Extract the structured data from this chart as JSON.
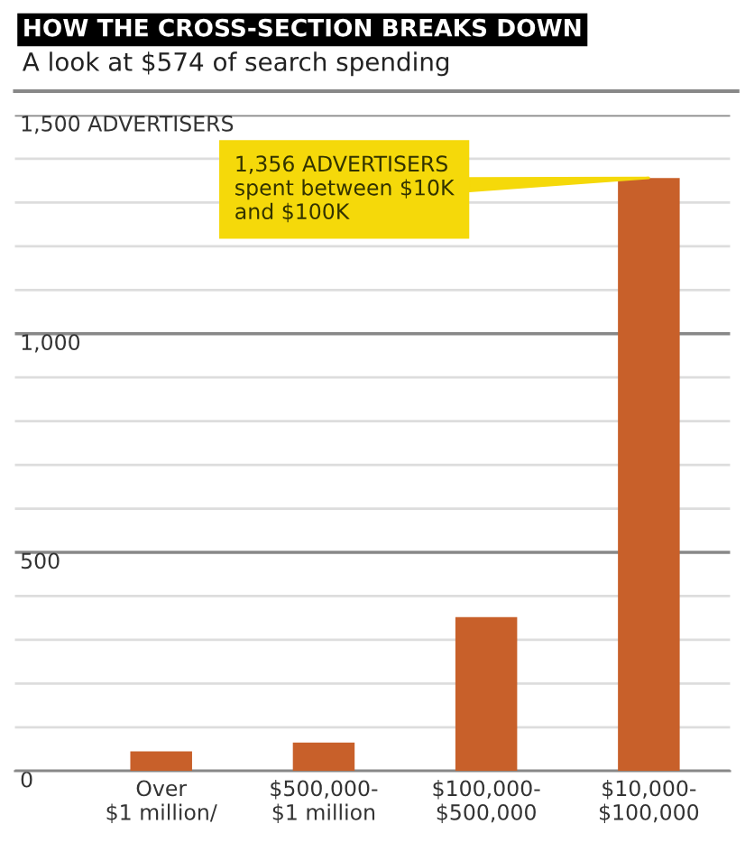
{
  "chart_data": {
    "type": "bar",
    "title": "HOW THE CROSS-SECTION BREAKS DOWN",
    "subtitle": "A look at $574 of search spending",
    "categories": [
      "Over\n$1 million/",
      "$500,000-\n$1 million",
      "$100,000-\n$500,000",
      "$10,000-\n$100,000"
    ],
    "values": [
      45,
      65,
      352,
      1356
    ],
    "color": "#c8602a",
    "ylim": [
      0,
      1500
    ],
    "yticks": [
      0,
      {
        "value": 100,
        "label": null
      },
      {
        "value": 200,
        "label": null
      },
      {
        "value": 300,
        "label": null
      },
      {
        "value": 400,
        "label": null
      },
      500,
      {
        "value": 600,
        "label": null
      },
      {
        "value": 700,
        "label": null
      },
      {
        "value": 800,
        "label": null
      },
      {
        "value": 900,
        "label": null
      },
      {
        "value": 1000,
        "label": "1,000"
      },
      {
        "value": 1100,
        "label": null
      },
      {
        "value": 1200,
        "label": null
      },
      {
        "value": 1300,
        "label": null
      },
      {
        "value": 1400,
        "label": null
      },
      {
        "value": 1500,
        "label": "1,500 ADVERTISERS"
      }
    ],
    "grid": "y",
    "annotations": [
      {
        "text": "1,356 ADVERTISERS\nspent between $10K\nand $100K",
        "x": "$10,000-\n$100,000",
        "y": 1356
      }
    ]
  }
}
